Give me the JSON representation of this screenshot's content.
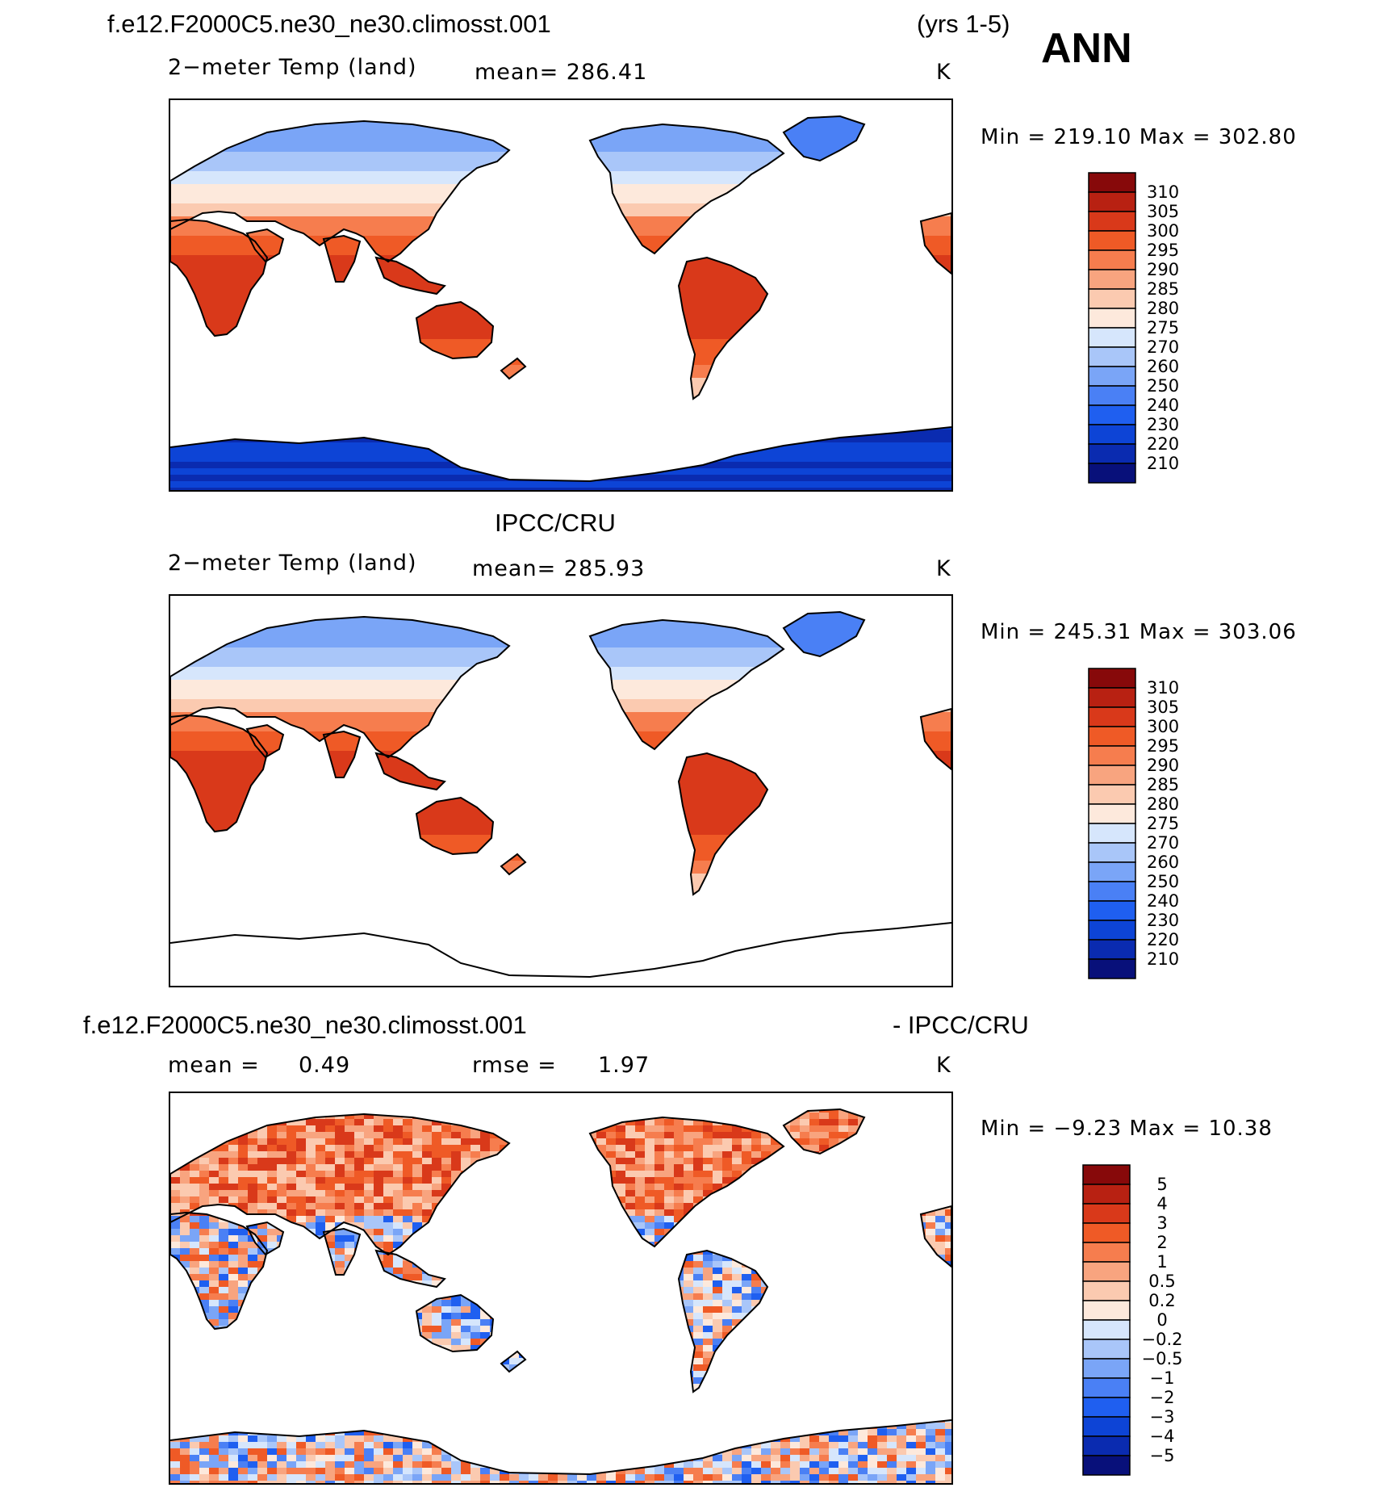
{
  "header": {
    "case_name": "f.e12.F2000C5.ne30_ne30.climosst.001",
    "years": "(yrs 1-5)",
    "season": "ANN"
  },
  "colors": {
    "abs_scale": [
      "#08107a",
      "#0a2bb0",
      "#0d44d6",
      "#1f5ff0",
      "#4a80f5",
      "#7aa5f7",
      "#a9c6f9",
      "#d6e6fc",
      "#fde9dc",
      "#fbcab0",
      "#f8a47f",
      "#f67d4e",
      "#ef5a26",
      "#d9391a",
      "#b82112",
      "#87090a"
    ],
    "diff_scale": [
      "#08107a",
      "#0a2bb0",
      "#0d44d6",
      "#1f5ff0",
      "#4a80f5",
      "#7aa5f7",
      "#a9c6f9",
      "#d6e6fc",
      "#fde9dc",
      "#fbcab0",
      "#f8a47f",
      "#f67d4e",
      "#ef5a26",
      "#d9391a",
      "#b82112",
      "#87090a"
    ],
    "coast": "#000000"
  },
  "chart_data": [
    {
      "type": "heatmap",
      "panel": "model",
      "title": "f.e12.F2000C5.ne30_ne30.climosst.001",
      "variable": "2−meter Temp (land)",
      "mean_text": "mean=  286.41",
      "mean": 286.41,
      "units": "K",
      "minmax_text": "Min  =  219.10  Max  =  302.80",
      "min": 219.1,
      "max": 302.8,
      "contour_levels": [
        "310",
        "305",
        "300",
        "295",
        "290",
        "285",
        "280",
        "275",
        "270",
        "260",
        "250",
        "240",
        "230",
        "220",
        "210"
      ],
      "projection": "cylindrical equidistant, centered 180"
    },
    {
      "type": "heatmap",
      "panel": "obs",
      "title": "IPCC/CRU",
      "variable": "2−meter Temp (land)",
      "mean_text": "mean=  285.93",
      "mean": 285.93,
      "units": "K",
      "minmax_text": "Min  =  245.31  Max  =  303.06",
      "min": 245.31,
      "max": 303.06,
      "contour_levels": [
        "310",
        "305",
        "300",
        "295",
        "290",
        "285",
        "280",
        "275",
        "270",
        "260",
        "250",
        "240",
        "230",
        "220",
        "210"
      ],
      "projection": "cylindrical equidistant, centered 180"
    },
    {
      "type": "heatmap",
      "panel": "difference",
      "title_left": "f.e12.F2000C5.ne30_ne30.climosst.001",
      "title_right": "- IPCC/CRU",
      "mean_label": "mean  =",
      "mean_value": "0.49",
      "rmse_label": "rmse  =",
      "rmse_value": "1.97",
      "units": "K",
      "minmax_text": "Min  =    −9.23  Max  =    10.38",
      "min": -9.23,
      "max": 10.38,
      "contour_levels": [
        "5",
        "4",
        "3",
        "2",
        "1",
        "0.5",
        "0.2",
        "0",
        "−0.2",
        "−0.5",
        "−1",
        "−2",
        "−3",
        "−4",
        "−5"
      ],
      "projection": "cylindrical equidistant, centered 180"
    }
  ]
}
